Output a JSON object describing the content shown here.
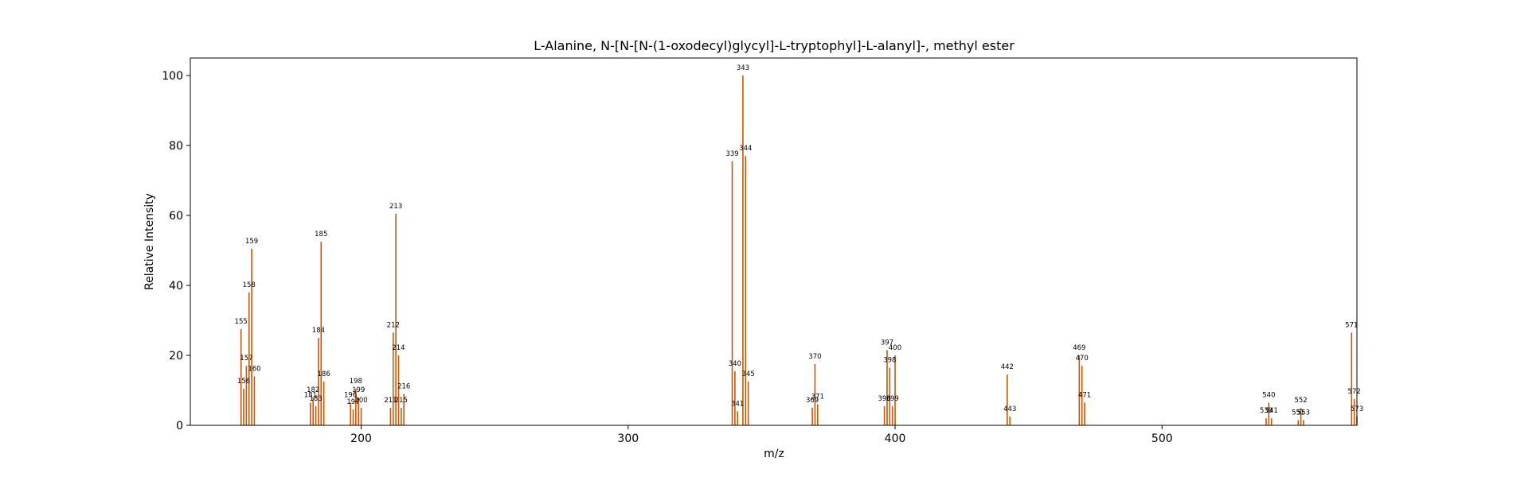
{
  "chart_data": {
    "type": "bar",
    "title": "L-Alanine, N-[N-[N-(1-oxodecyl)glycyl]-L-tryptophyl]-L-alanyl]-, methyl ester",
    "xlabel": "m/z",
    "ylabel": "Relative Intensity",
    "xlim": [
      136,
      573
    ],
    "ylim": [
      0,
      105
    ],
    "xticks": [
      200,
      300,
      400,
      500
    ],
    "yticks": [
      0,
      20,
      40,
      60,
      80,
      100
    ],
    "grid": false,
    "bar_color": "#cc5500",
    "peaks": [
      {
        "mz": 155,
        "intensity": 27.5,
        "label": "155"
      },
      {
        "mz": 156,
        "intensity": 10.5,
        "label": "156"
      },
      {
        "mz": 157,
        "intensity": 17.0,
        "label": "157"
      },
      {
        "mz": 158,
        "intensity": 38.0,
        "label": "158"
      },
      {
        "mz": 159,
        "intensity": 50.5,
        "label": "159"
      },
      {
        "mz": 160,
        "intensity": 14.0,
        "label": "160"
      },
      {
        "mz": 181,
        "intensity": 6.5,
        "label": "181"
      },
      {
        "mz": 182,
        "intensity": 8.0,
        "label": "182"
      },
      {
        "mz": 183,
        "intensity": 5.5,
        "label": "183"
      },
      {
        "mz": 184,
        "intensity": 25.0,
        "label": "184"
      },
      {
        "mz": 185,
        "intensity": 52.5,
        "label": "185"
      },
      {
        "mz": 186,
        "intensity": 12.5,
        "label": "186"
      },
      {
        "mz": 196,
        "intensity": 6.5,
        "label": "196"
      },
      {
        "mz": 197,
        "intensity": 4.5,
        "label": "197"
      },
      {
        "mz": 198,
        "intensity": 10.5,
        "label": "198"
      },
      {
        "mz": 199,
        "intensity": 8.0,
        "label": "199"
      },
      {
        "mz": 200,
        "intensity": 5.0,
        "label": "200"
      },
      {
        "mz": 211,
        "intensity": 5.0,
        "label": "211"
      },
      {
        "mz": 212,
        "intensity": 26.5,
        "label": "212"
      },
      {
        "mz": 213,
        "intensity": 60.5,
        "label": "213"
      },
      {
        "mz": 214,
        "intensity": 20.0,
        "label": "214"
      },
      {
        "mz": 215,
        "intensity": 5.0,
        "label": "215"
      },
      {
        "mz": 216,
        "intensity": 9.0,
        "label": "216"
      },
      {
        "mz": 339,
        "intensity": 75.5,
        "label": "339"
      },
      {
        "mz": 340,
        "intensity": 15.5,
        "label": "340"
      },
      {
        "mz": 341,
        "intensity": 4.0,
        "label": "341"
      },
      {
        "mz": 343,
        "intensity": 100.0,
        "label": "343"
      },
      {
        "mz": 344,
        "intensity": 77.0,
        "label": "344"
      },
      {
        "mz": 345,
        "intensity": 12.5,
        "label": "345"
      },
      {
        "mz": 369,
        "intensity": 5.0,
        "label": "369"
      },
      {
        "mz": 370,
        "intensity": 17.5,
        "label": "370"
      },
      {
        "mz": 371,
        "intensity": 6.0,
        "label": "371"
      },
      {
        "mz": 396,
        "intensity": 5.5,
        "label": "396"
      },
      {
        "mz": 397,
        "intensity": 21.5,
        "label": "397"
      },
      {
        "mz": 398,
        "intensity": 16.5,
        "label": "398"
      },
      {
        "mz": 399,
        "intensity": 5.5,
        "label": "399"
      },
      {
        "mz": 400,
        "intensity": 20.0,
        "label": "400"
      },
      {
        "mz": 442,
        "intensity": 14.5,
        "label": "442"
      },
      {
        "mz": 443,
        "intensity": 2.5,
        "label": "443"
      },
      {
        "mz": 469,
        "intensity": 20.0,
        "label": "469"
      },
      {
        "mz": 470,
        "intensity": 17.0,
        "label": "470"
      },
      {
        "mz": 471,
        "intensity": 6.5,
        "label": "471"
      },
      {
        "mz": 539,
        "intensity": 2.0,
        "label": "539"
      },
      {
        "mz": 540,
        "intensity": 6.5,
        "label": "540"
      },
      {
        "mz": 541,
        "intensity": 2.0,
        "label": "541"
      },
      {
        "mz": 551,
        "intensity": 1.5,
        "label": "551"
      },
      {
        "mz": 552,
        "intensity": 5.0,
        "label": "552"
      },
      {
        "mz": 553,
        "intensity": 1.5,
        "label": "553"
      },
      {
        "mz": 571,
        "intensity": 26.5,
        "label": "571"
      },
      {
        "mz": 572,
        "intensity": 7.5,
        "label": "572"
      },
      {
        "mz": 573,
        "intensity": 2.5,
        "label": "573"
      }
    ]
  }
}
